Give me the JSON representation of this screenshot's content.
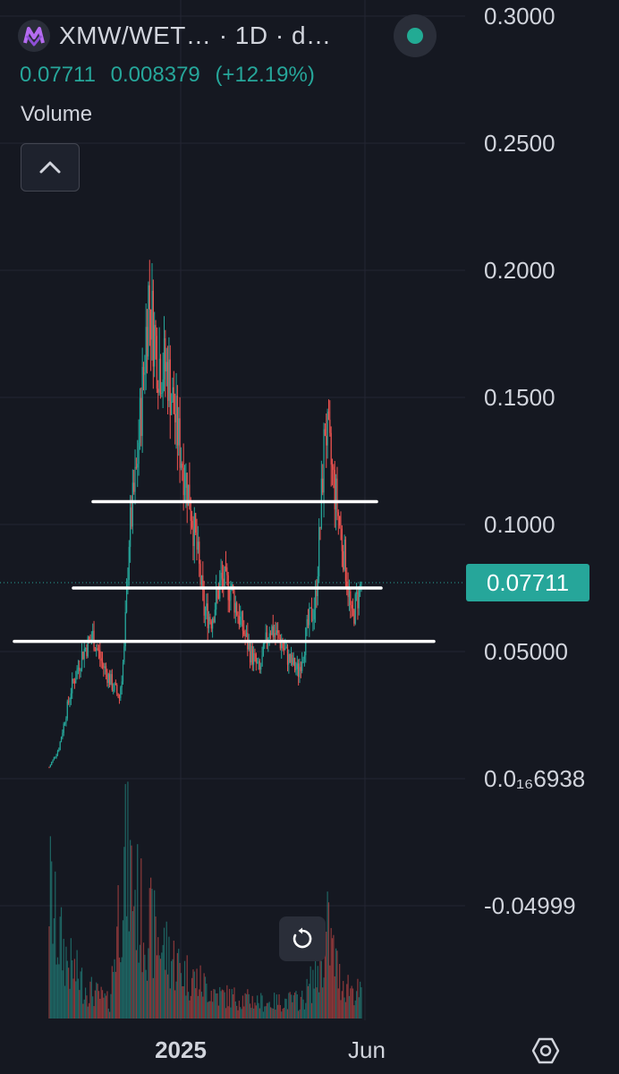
{
  "header": {
    "symbol": "XMW/WET…",
    "interval": " · 1D · d…",
    "logo": "xmw-logo-icon",
    "status": "live-status-icon",
    "status_color": "#22ab94"
  },
  "quote": {
    "last": "0.07711",
    "change": "0.008379",
    "change_pct": "(+12.19%)",
    "color": "#26a69a"
  },
  "volume_label": "Volume",
  "last_price_tag": "0.07711",
  "icons": {
    "collapse": "chevron-up-icon",
    "reset": "reset-chart-icon",
    "settings": "settings-icon"
  },
  "colors": {
    "background": "#151821",
    "up": "#26a69a",
    "down": "#ef5350",
    "grid": "#232632",
    "drawings": "#ffffff"
  },
  "chart_data": {
    "type": "candlestick",
    "title": "",
    "xlabel": "",
    "ylabel": "",
    "y_ticks": [
      "0.3000",
      "0.2500",
      "0.2000",
      "0.1500",
      "0.1000",
      "0.05000",
      "0.0₁₆6938",
      "-0.04999"
    ],
    "y_tick_values": [
      0.3,
      0.25,
      0.2,
      0.15,
      0.1,
      0.05,
      0.0,
      -0.05
    ],
    "ylim": [
      -0.0797,
      0.3067
    ],
    "x_ticks": [
      "2025",
      "Jun"
    ],
    "grid": true,
    "last_price": 0.07711,
    "horizontal_lines": [
      0.109,
      0.075,
      0.054
    ],
    "price_path": [
      {
        "t": 0,
        "v": 0.0045
      },
      {
        "t": 8,
        "v": 0.012
      },
      {
        "t": 18,
        "v": 0.035
      },
      {
        "t": 28,
        "v": 0.05
      },
      {
        "t": 36,
        "v": 0.056
      },
      {
        "t": 44,
        "v": 0.045
      },
      {
        "t": 52,
        "v": 0.037
      },
      {
        "t": 58,
        "v": 0.032
      },
      {
        "t": 62,
        "v": 0.05
      },
      {
        "t": 66,
        "v": 0.095
      },
      {
        "t": 72,
        "v": 0.12
      },
      {
        "t": 78,
        "v": 0.16
      },
      {
        "t": 82,
        "v": 0.19
      },
      {
        "t": 90,
        "v": 0.165
      },
      {
        "t": 98,
        "v": 0.16
      },
      {
        "t": 108,
        "v": 0.13
      },
      {
        "t": 116,
        "v": 0.11
      },
      {
        "t": 122,
        "v": 0.09
      },
      {
        "t": 128,
        "v": 0.066
      },
      {
        "t": 134,
        "v": 0.063
      },
      {
        "t": 142,
        "v": 0.078
      },
      {
        "t": 150,
        "v": 0.075
      },
      {
        "t": 158,
        "v": 0.062
      },
      {
        "t": 166,
        "v": 0.05
      },
      {
        "t": 174,
        "v": 0.042
      },
      {
        "t": 182,
        "v": 0.06
      },
      {
        "t": 190,
        "v": 0.055
      },
      {
        "t": 198,
        "v": 0.047
      },
      {
        "t": 206,
        "v": 0.042
      },
      {
        "t": 214,
        "v": 0.06
      },
      {
        "t": 220,
        "v": 0.07
      },
      {
        "t": 224,
        "v": 0.1
      },
      {
        "t": 228,
        "v": 0.14
      },
      {
        "t": 234,
        "v": 0.12
      },
      {
        "t": 240,
        "v": 0.1
      },
      {
        "t": 246,
        "v": 0.08
      },
      {
        "t": 250,
        "v": 0.062
      },
      {
        "t": 254,
        "v": 0.07
      },
      {
        "t": 258,
        "v": 0.07711
      }
    ],
    "volume_profile": [
      {
        "t": 0,
        "v": 0.85
      },
      {
        "t": 6,
        "v": 0.55
      },
      {
        "t": 16,
        "v": 0.35
      },
      {
        "t": 30,
        "v": 0.2
      },
      {
        "t": 50,
        "v": 0.1
      },
      {
        "t": 60,
        "v": 0.9
      },
      {
        "t": 64,
        "v": 1.0
      },
      {
        "t": 76,
        "v": 0.65
      },
      {
        "t": 90,
        "v": 0.5
      },
      {
        "t": 110,
        "v": 0.3
      },
      {
        "t": 140,
        "v": 0.15
      },
      {
        "t": 180,
        "v": 0.1
      },
      {
        "t": 210,
        "v": 0.12
      },
      {
        "t": 224,
        "v": 0.35
      },
      {
        "t": 230,
        "v": 0.55
      },
      {
        "t": 240,
        "v": 0.25
      },
      {
        "t": 258,
        "v": 0.15
      }
    ]
  }
}
